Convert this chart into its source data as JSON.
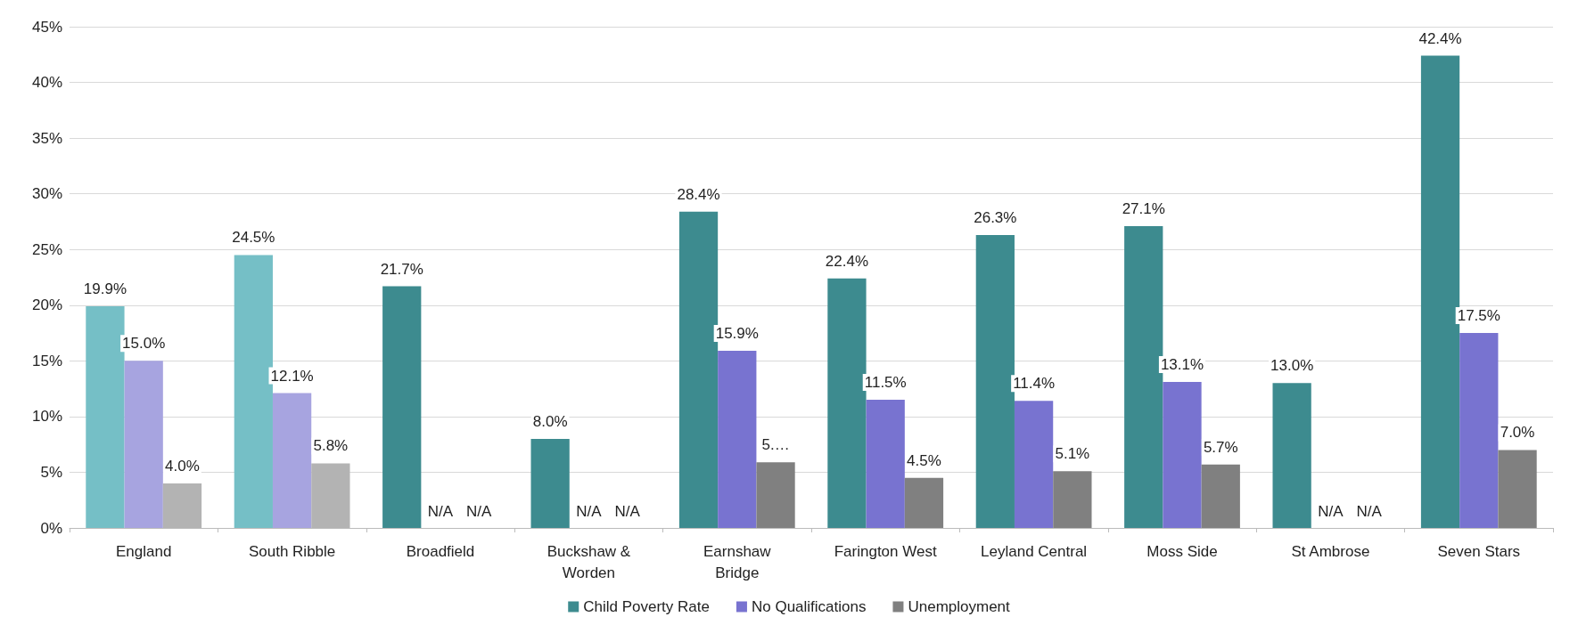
{
  "chart_data": {
    "type": "bar",
    "categories": [
      "England",
      "South Ribble",
      "Broadfield",
      "Buckshaw &\nWorden",
      "Earnshaw\nBridge",
      "Farington West",
      "Leyland Central",
      "Moss Side",
      "St Ambrose",
      "Seven Stars"
    ],
    "series": [
      {
        "name": "Child Poverty Rate",
        "color": "#3d8b8f",
        "colors": [
          "#75bfc6",
          "#75bfc6",
          "#3d8b8f",
          "#3d8b8f",
          "#3d8b8f",
          "#3d8b8f",
          "#3d8b8f",
          "#3d8b8f",
          "#3d8b8f",
          "#3d8b8f"
        ],
        "values": [
          19.9,
          24.5,
          21.7,
          8.0,
          28.4,
          22.4,
          26.3,
          27.1,
          13.0,
          42.4
        ],
        "value_labels": [
          "19.9%",
          "24.5%",
          "21.7%",
          "8.0%",
          "28.4%",
          "22.4%",
          "26.3%",
          "27.1%",
          "13.0%",
          "42.4%"
        ]
      },
      {
        "name": "No Qualifications",
        "color": "#7873d0",
        "colors": [
          "#a7a4e0",
          "#a7a4e0",
          "#7873d0",
          "#7873d0",
          "#7873d0",
          "#7873d0",
          "#7873d0",
          "#7873d0",
          "#7873d0",
          "#7873d0"
        ],
        "values": [
          15.0,
          12.1,
          null,
          null,
          15.9,
          11.5,
          11.4,
          13.1,
          null,
          17.5
        ],
        "value_labels": [
          "15.0%",
          "12.1%",
          "N/A",
          "N/A",
          "15.9%",
          "11.5%",
          "11.4%",
          "13.1%",
          "N/A",
          "17.5%"
        ]
      },
      {
        "name": "Unemployment",
        "color": "#808080",
        "colors": [
          "#b3b3b3",
          "#b3b3b3",
          "#808080",
          "#808080",
          "#808080",
          "#808080",
          "#808080",
          "#808080",
          "#808080",
          "#808080"
        ],
        "values": [
          4.0,
          5.8,
          null,
          null,
          5.9,
          4.5,
          5.1,
          5.7,
          null,
          7.0
        ],
        "value_labels": [
          "4.0%",
          "5.8%",
          "N/A",
          "N/A",
          "5.…",
          "4.5%",
          "5.1%",
          "5.7%",
          "N/A",
          "7.0%"
        ]
      }
    ],
    "ylim": [
      0,
      45
    ],
    "yticks": [
      {
        "value": 0,
        "label": "0%"
      },
      {
        "value": 5,
        "label": "5%"
      },
      {
        "value": 10,
        "label": "10%"
      },
      {
        "value": 15,
        "label": "15%"
      },
      {
        "value": 20,
        "label": "20%"
      },
      {
        "value": 25,
        "label": "25%"
      },
      {
        "value": 30,
        "label": "30%"
      },
      {
        "value": 35,
        "label": "35%"
      },
      {
        "value": 40,
        "label": "40%"
      },
      {
        "value": 45,
        "label": "45%"
      }
    ],
    "grid": "y",
    "legend": "bottom"
  }
}
